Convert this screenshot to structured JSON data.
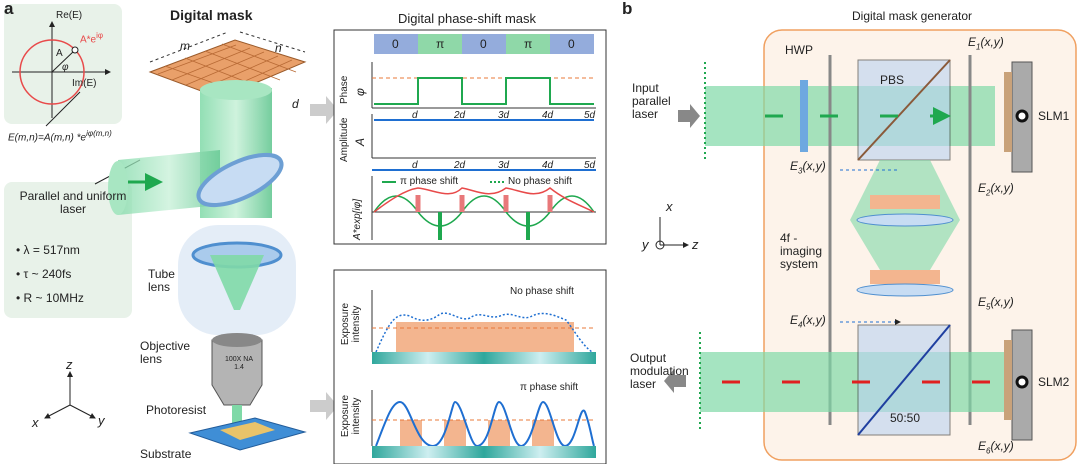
{
  "panel_a": {
    "label": "a",
    "title": "Digital mask",
    "complex_plane": {
      "re_axis": "Re(E)",
      "im_axis": "Im(E)",
      "amplitude": "A",
      "phase": "φ",
      "point": {
        "base": "A*e",
        "sup": "iφ"
      },
      "formula": {
        "base": "E(m,n)=A(m,n) *e",
        "sup": "iφ(m,n)"
      }
    },
    "mask_dims": {
      "m": "m",
      "n": "n",
      "d": "d"
    },
    "laser": {
      "title": "Parallel and uniform laser",
      "params": [
        "λ = 517nm",
        "τ ~ 240fs",
        "R ~ 10MHz"
      ]
    },
    "tube_lens": "Tube lens",
    "objective": {
      "label": "Objective lens",
      "marking": "100X NA 1.4"
    },
    "photoresist": "Photoresist",
    "substrate": "Substrate",
    "axes": {
      "z": "z",
      "x": "x",
      "y": "y"
    }
  },
  "phase_mask": {
    "title": "Digital phase-shift mask",
    "segments": [
      "0",
      "π",
      "0",
      "π",
      "0"
    ],
    "phase_plot": {
      "label": "Phase",
      "symbol": "φ",
      "ticks": [
        "d",
        "2d",
        "3d",
        "4d",
        "5d"
      ]
    },
    "amplitude_plot": {
      "label": "Amplitude",
      "symbol": "A",
      "ticks": [
        "d",
        "2d",
        "3d",
        "4d",
        "5d"
      ]
    },
    "field_plot": {
      "label": "A*exp[iφ]",
      "legend": [
        "π phase shift",
        "No phase shift"
      ]
    }
  },
  "exposure": {
    "top": {
      "label": "Exposure intensity",
      "legend": "No phase shift"
    },
    "bottom": {
      "label": "Exposure intensity",
      "legend": "π phase shift"
    }
  },
  "panel_b": {
    "label": "b",
    "title": "Digital mask generator",
    "hwp": "HWP",
    "pbs": "PBS",
    "slm1": "SLM1",
    "slm2": "SLM2",
    "input": "Input parallel laser",
    "output": "Output modulation laser",
    "imaging": "4f - imaging system",
    "splitter": "50:50",
    "fields": [
      {
        "base": "E",
        "sub": "1",
        "arg": "(x,y)"
      },
      {
        "base": "E",
        "sub": "2",
        "arg": "(x,y)"
      },
      {
        "base": "E",
        "sub": "3",
        "arg": "(x,y)"
      },
      {
        "base": "E",
        "sub": "4",
        "arg": "(x,y)"
      },
      {
        "base": "E",
        "sub": "5",
        "arg": "(x,y)"
      },
      {
        "base": "E",
        "sub": "6",
        "arg": "(x,y)"
      }
    ],
    "axes": {
      "x": "x",
      "y": "y",
      "z": "z"
    }
  }
}
